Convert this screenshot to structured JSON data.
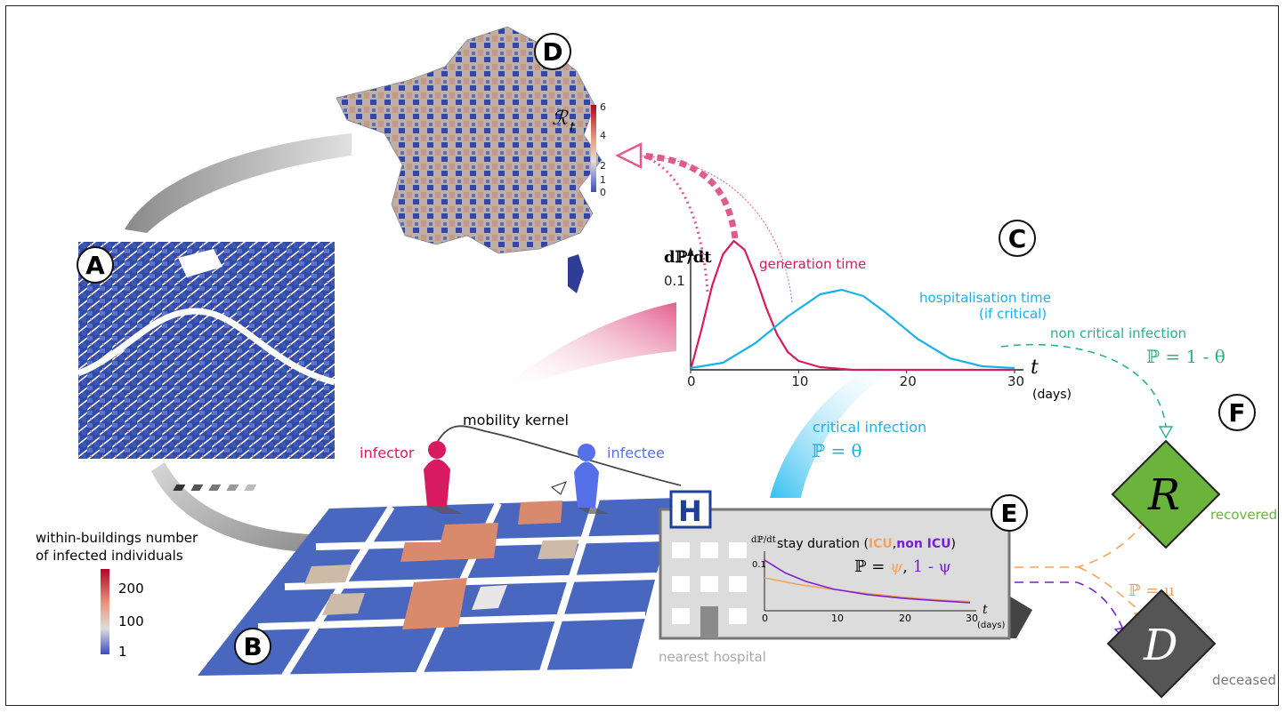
{
  "panels": {
    "a": "A",
    "b": "B",
    "c": "C",
    "d": "D",
    "e": "E",
    "f": "F"
  },
  "map": {
    "colorbar_label": "ℛ",
    "colorbar_label_sub": "t",
    "ticks": [
      "6",
      "4",
      "2",
      "1",
      "0"
    ]
  },
  "legend_b": {
    "title_line1": "within-buildings number",
    "title_line2": "of infected individuals",
    "ticks": [
      "200",
      "100",
      "1"
    ]
  },
  "mobility": {
    "kernel_label": "mobility kernel",
    "infector_label": "infector",
    "infectee_label": "infectee"
  },
  "chart_data": {
    "type": "line",
    "title": "",
    "xlabel": "t",
    "xunit": "(days)",
    "ylabel": "dℙ/dt",
    "x_ticks": [
      "0",
      "10",
      "20",
      "30"
    ],
    "y_ticks": [
      "0.1"
    ],
    "xlim": [
      0,
      30
    ],
    "ylim": [
      0,
      0.15
    ],
    "series": [
      {
        "name": "generation time",
        "color": "#d81b60",
        "x": [
          0,
          1,
          2,
          3,
          4,
          5,
          6,
          7,
          8,
          9,
          10,
          12,
          15,
          20,
          25,
          30
        ],
        "y": [
          0,
          0.045,
          0.095,
          0.13,
          0.145,
          0.135,
          0.105,
          0.07,
          0.04,
          0.02,
          0.01,
          0.003,
          0.0,
          0.0,
          0.0,
          0.0
        ]
      },
      {
        "name": "hospitalisation time (if critical)",
        "color": "#1ab2e8",
        "x": [
          0,
          3,
          6,
          9,
          12,
          14,
          16,
          18,
          21,
          24,
          27,
          30
        ],
        "y": [
          0.002,
          0.008,
          0.03,
          0.06,
          0.085,
          0.09,
          0.083,
          0.065,
          0.035,
          0.013,
          0.004,
          0.002
        ]
      }
    ]
  },
  "curve_labels": {
    "generation": "generation time",
    "hosp_line1": "hospitalisation time",
    "hosp_line2": "(if critical)"
  },
  "transitions": {
    "critical_label": "critical infection",
    "critical_prob": "ℙ = θ",
    "noncritical_label": "non critical infection",
    "noncritical_prob": "ℙ = 1 - θ",
    "mu_prob": "ℙ = μ"
  },
  "hospital": {
    "sign": "H",
    "nearest": "nearest hospital",
    "stay_ylabel": "dℙ/dt",
    "stay_title_prefix": "stay duration (",
    "stay_icu": "ICU",
    "stay_comma": ",",
    "stay_nonicu": "non ICU",
    "stay_title_suffix": ")",
    "stay_prob_prefix": "ℙ = ",
    "stay_psi": "ψ",
    "stay_prob_sep": ",  ",
    "stay_one_minus_psi": "1 - ψ",
    "x_ticks": [
      "0",
      "10",
      "20",
      "30"
    ],
    "y_tick": "0.1",
    "xlabel": "t",
    "xunit": "(days)"
  },
  "stay_chart_data": {
    "type": "line",
    "xlim": [
      0,
      30
    ],
    "series": [
      {
        "name": "ICU",
        "color": "#f5a35c",
        "x": [
          0,
          5,
          10,
          15,
          20,
          25,
          30
        ],
        "y": [
          0.065,
          0.052,
          0.042,
          0.034,
          0.027,
          0.022,
          0.018
        ]
      },
      {
        "name": "non ICU",
        "color": "#7b1fd6",
        "x": [
          0,
          3,
          6,
          10,
          15,
          20,
          25,
          30
        ],
        "y": [
          0.1,
          0.075,
          0.058,
          0.043,
          0.032,
          0.025,
          0.02,
          0.016
        ]
      }
    ]
  },
  "outcomes": {
    "recovered_letter": "R",
    "recovered_label": "recovered",
    "recovered_color": "#6ab43c",
    "deceased_letter": "D",
    "deceased_label": "deceased",
    "deceased_color": "#555555"
  }
}
